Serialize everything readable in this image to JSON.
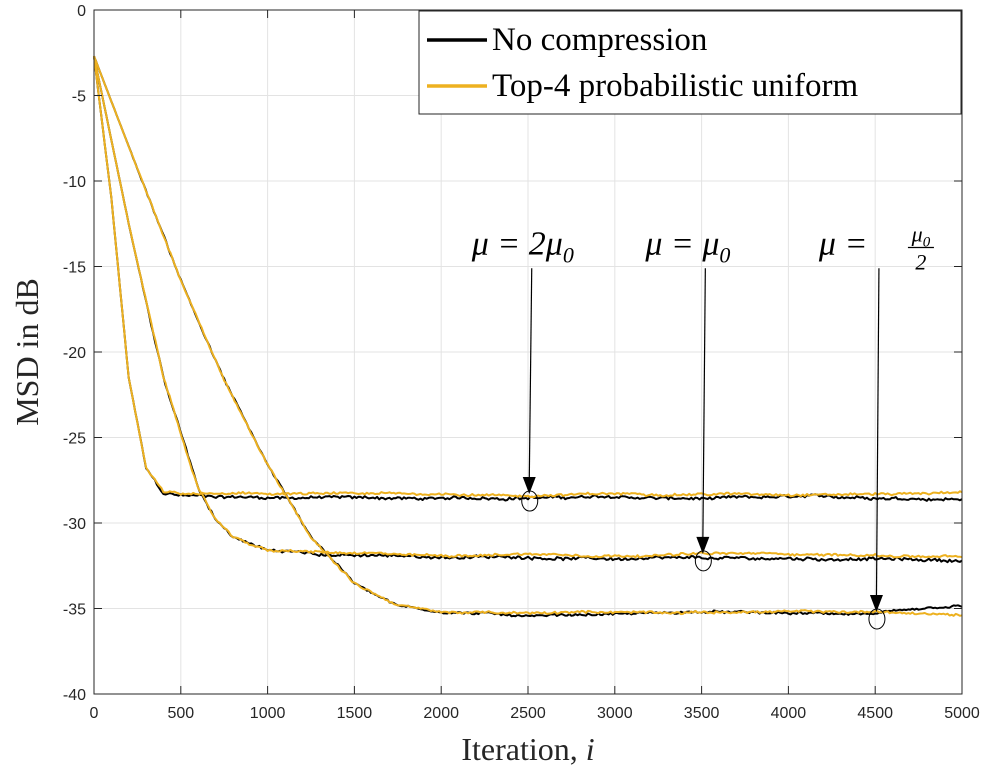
{
  "chart_data": {
    "type": "line",
    "title": "",
    "xlabel": "Iteration, ",
    "xlabel_var": "i",
    "ylabel": "MSD in dB",
    "xlim": [
      0,
      5000
    ],
    "ylim": [
      -40,
      0
    ],
    "xticks": [
      0,
      500,
      1000,
      1500,
      2000,
      2500,
      3000,
      3500,
      4000,
      4500,
      5000
    ],
    "yticks": [
      0,
      -5,
      -10,
      -15,
      -20,
      -25,
      -30,
      -35,
      -40
    ],
    "grid": true,
    "legend": {
      "placement": "top-right",
      "entries": [
        {
          "label": "No compression",
          "color": "#000000"
        },
        {
          "label": "Top-4 probabilistic uniform",
          "color": "#EDB120"
        }
      ]
    },
    "series": [
      {
        "name": "No compression",
        "step_size": "μ = 2μ0",
        "color": "#000000",
        "x": [
          0,
          100,
          200,
          300,
          400,
          500,
          1000,
          1500,
          2000,
          2500,
          3000,
          3500,
          4000,
          4500,
          5000
        ],
        "y": [
          -2.7,
          -11,
          -21.5,
          -26.8,
          -28.3,
          -28.4,
          -28.5,
          -28.5,
          -28.6,
          -28.5,
          -28.5,
          -28.6,
          -28.5,
          -28.5,
          -28.6
        ],
        "noise": 0.25
      },
      {
        "name": "Top-4 probabilistic uniform",
        "step_size": "μ = 2μ0",
        "color": "#EDB120",
        "x": [
          0,
          100,
          200,
          300,
          400,
          500,
          1000,
          1500,
          2000,
          2500,
          3000,
          3500,
          4000,
          4500,
          5000
        ],
        "y": [
          -2.7,
          -11,
          -21.5,
          -26.8,
          -28.2,
          -28.3,
          -28.3,
          -28.3,
          -28.3,
          -28.4,
          -28.3,
          -28.3,
          -28.3,
          -28.3,
          -28.2
        ],
        "noise": 0.2
      },
      {
        "name": "No compression",
        "step_size": "μ = μ0",
        "color": "#000000",
        "x": [
          0,
          200,
          400,
          600,
          700,
          800,
          1000,
          1500,
          2000,
          2500,
          3000,
          3500,
          4000,
          4500,
          5000
        ],
        "y": [
          -2.7,
          -12.5,
          -21.5,
          -28,
          -29.8,
          -30.8,
          -31.6,
          -31.9,
          -32,
          -32,
          -32.1,
          -32.1,
          -32.1,
          -32.1,
          -32.2
        ],
        "noise": 0.25
      },
      {
        "name": "Top-4 probabilistic uniform",
        "step_size": "μ = μ0",
        "color": "#EDB120",
        "x": [
          0,
          200,
          400,
          600,
          700,
          800,
          1000,
          1500,
          2000,
          2500,
          3000,
          3500,
          4000,
          4500,
          5000
        ],
        "y": [
          -2.7,
          -12.5,
          -21.5,
          -28,
          -29.8,
          -30.8,
          -31.6,
          -31.8,
          -31.9,
          -31.8,
          -31.9,
          -31.8,
          -31.8,
          -31.9,
          -32.0
        ],
        "noise": 0.2
      },
      {
        "name": "No compression",
        "step_size": "μ = μ0/2",
        "color": "#000000",
        "x": [
          0,
          250,
          500,
          750,
          1000,
          1250,
          1500,
          1750,
          2000,
          2500,
          3000,
          3500,
          4000,
          4500,
          5000
        ],
        "y": [
          -2.7,
          -9.3,
          -15.8,
          -21.6,
          -26.6,
          -30.8,
          -33.5,
          -34.8,
          -35.2,
          -35.4,
          -35.3,
          -35.2,
          -35.3,
          -35.3,
          -34.9
        ],
        "noise": 0.2
      },
      {
        "name": "Top-4 probabilistic uniform",
        "step_size": "μ = μ0/2",
        "color": "#EDB120",
        "x": [
          0,
          250,
          500,
          750,
          1000,
          1250,
          1500,
          1750,
          2000,
          2500,
          3000,
          3500,
          4000,
          4500,
          5000
        ],
        "y": [
          -2.7,
          -9.3,
          -15.8,
          -21.6,
          -26.6,
          -30.8,
          -33.5,
          -34.8,
          -35.2,
          -35.3,
          -35.2,
          -35.2,
          -35.2,
          -35.2,
          -35.4
        ],
        "noise": 0.2
      }
    ],
    "annotations": [
      {
        "prefix": "μ = ",
        "value": "2μ",
        "sub": "0",
        "frac": false,
        "text_x": 2510,
        "text_y": -14.3,
        "arrow_top": -15.1,
        "point_x": 2510,
        "point_y": -28.6
      },
      {
        "prefix": "μ = ",
        "value": "μ",
        "sub": "0",
        "frac": false,
        "text_x": 3510,
        "text_y": -14.3,
        "arrow_top": -15.1,
        "point_x": 3510,
        "point_y": -32.1
      },
      {
        "prefix": "μ = ",
        "value": "μ",
        "sub": "0",
        "frac": true,
        "denominator": "2",
        "text_x": 4510,
        "text_y": -14.3,
        "arrow_top": -15.1,
        "point_x": 4510,
        "point_y": -35.5
      }
    ]
  }
}
